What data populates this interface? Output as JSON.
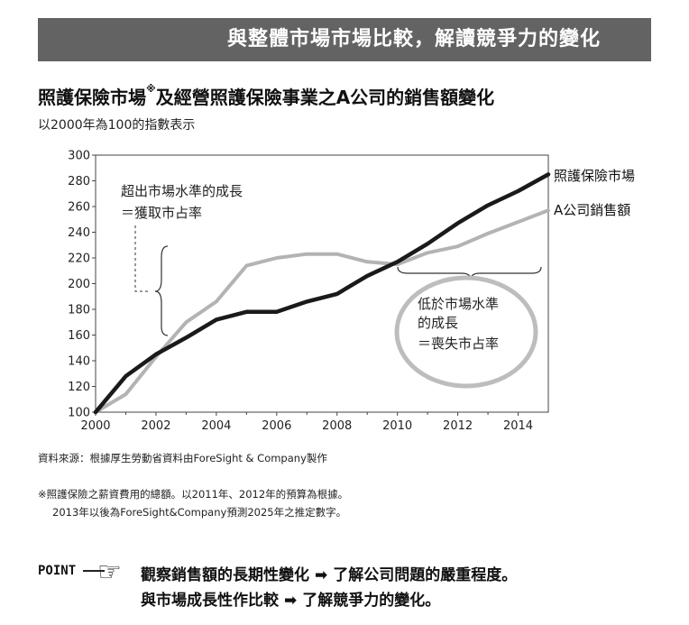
{
  "banner": {
    "text": "與整體市場市場比較，解讀競爭力的變化"
  },
  "title": {
    "main": "照護保險市場",
    "sup": "※",
    "rest": "及經營照護保險事業之A公司的銷售額變化"
  },
  "subtitle": "以2000年為100的指數表示",
  "chart_data": {
    "type": "line",
    "x_ticks": [
      2000,
      2002,
      2004,
      2006,
      2008,
      2010,
      2012,
      2014
    ],
    "y_ticks": [
      100,
      120,
      140,
      160,
      180,
      200,
      220,
      240,
      260,
      280,
      300
    ],
    "xlim": [
      2000,
      2015
    ],
    "ylim": [
      100,
      300
    ],
    "grid": false,
    "series": [
      {
        "name": "照護保險市場",
        "color": "#1a1a1a",
        "x": [
          2000,
          2001,
          2002,
          2003,
          2004,
          2005,
          2006,
          2007,
          2008,
          2009,
          2010,
          2011,
          2012,
          2013,
          2014,
          2015
        ],
        "y": [
          100,
          128,
          145,
          158,
          172,
          178,
          178,
          186,
          192,
          206,
          217,
          231,
          247,
          261,
          272,
          285
        ]
      },
      {
        "name": "A公司銷售額",
        "color": "#b3b3b3",
        "x": [
          2000,
          2001,
          2002,
          2003,
          2004,
          2005,
          2006,
          2007,
          2008,
          2009,
          2010,
          2011,
          2012,
          2013,
          2014,
          2015
        ],
        "y": [
          100,
          114,
          143,
          170,
          186,
          214,
          220,
          223,
          223,
          217,
          215,
          224,
          229,
          239,
          248,
          257
        ]
      }
    ],
    "annotations": {
      "above_line1": "超出市場水準的成長",
      "above_line2": "＝獲取市占率",
      "below_line1": "低於市場水準",
      "below_line2": "的成長",
      "below_line3": "＝喪失市占率"
    }
  },
  "source": "資料來源：根據厚生勞動省資料由ForeSight & Company製作",
  "notes": {
    "line1": "※照護保險之薪資費用的總額。以2011年、2012年的預算為根據。",
    "line2": "2013年以後為ForeSight&Company預測2025年之推定數字。"
  },
  "point": {
    "label": "POINT",
    "line1_a": "觀察銷售額的長期性變化",
    "line1_b": "了解公司問題的嚴重程度。",
    "line2_a": "與市場成長性作比較",
    "line2_b": "了解競爭力的變化。"
  }
}
